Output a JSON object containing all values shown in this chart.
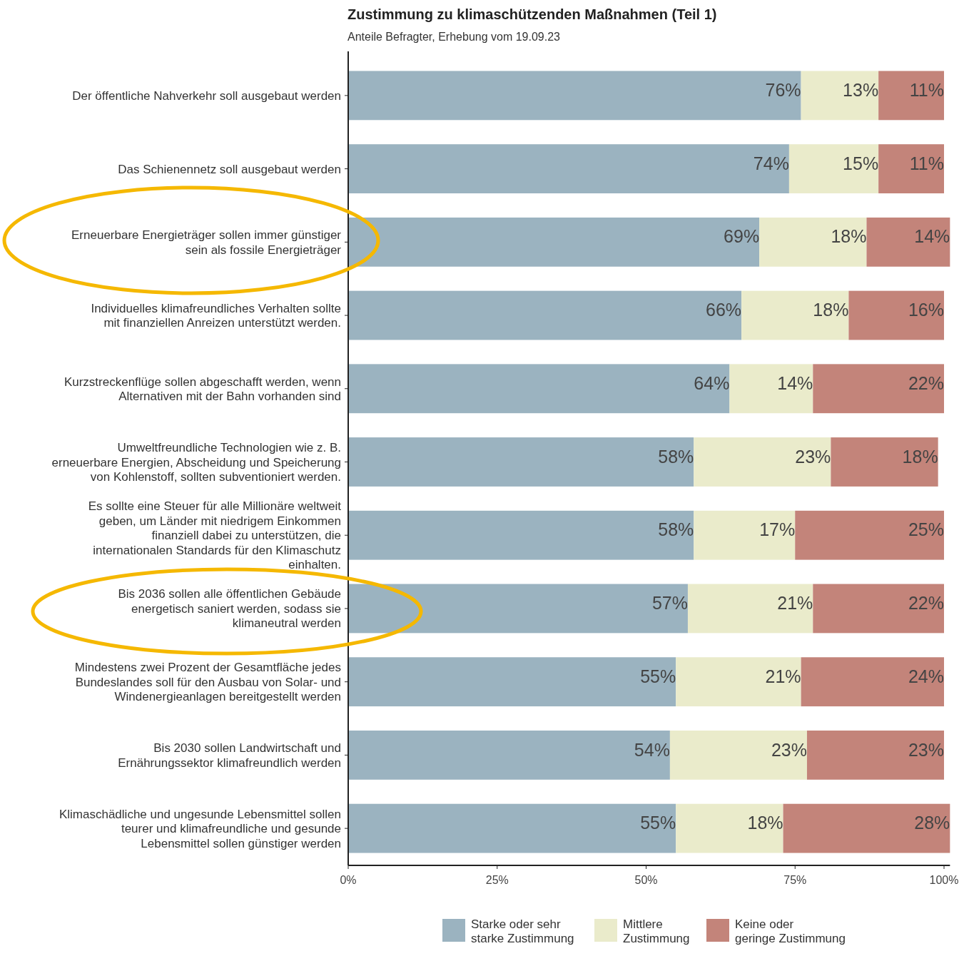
{
  "chart_data": {
    "type": "bar",
    "orientation": "horizontal",
    "stacked": true,
    "title": "Zustimmung zu klimaschützenden Maßnahmen (Teil 1)",
    "subtitle": "Anteile Befragter, Erhebung vom 19.09.23",
    "categories": [
      "Der öffentliche Nahverkehr soll ausgebaut werden",
      "Das Schienennetz soll ausgebaut werden",
      "Erneuerbare Energieträger sollen immer günstiger\nsein als fossile Energieträger",
      "Individuelles klimafreundliches Verhalten sollte\nmit finanziellen Anreizen unterstützt werden.",
      "Kurzstreckenflüge sollen abgeschafft werden, wenn\nAlternativen mit der Bahn vorhanden sind",
      "Umweltfreundliche Technologien wie z. B.\nerneuerbare Energien, Abscheidung und Speicherung\nvon Kohlenstoff, sollten subventioniert werden.",
      "Es sollte eine Steuer für alle Millionäre weltweit\ngeben, um Länder mit niedrigem Einkommen\nfinanziell dabei zu unterstützen, die\ninternationalen Standards für den Klimaschutz\neinhalten.",
      "Bis 2036 sollen alle öffentlichen Gebäude\nenergetisch saniert werden, sodass sie\nklimaneutral werden",
      "Mindestens zwei Prozent der Gesamtfläche jedes\nBundeslandes soll für den Ausbau von Solar- und\nWindenergieanlagen bereitgestellt werden",
      "Bis 2030 sollen Landwirtschaft und\nErnährungssektor klimafreundlich werden",
      "Klimaschädliche und ungesunde Lebensmittel sollen\nteurer und klimafreundliche und gesunde\nLebensmittel sollen günstiger werden"
    ],
    "series": [
      {
        "name": "Starke oder sehr\nstarke Zustimmung",
        "color": "#9bb3c0",
        "values": [
          76,
          74,
          69,
          66,
          64,
          58,
          58,
          57,
          55,
          54,
          55
        ]
      },
      {
        "name": "Mittlere\nZustimmung",
        "color": "#eaebcb",
        "values": [
          13,
          15,
          18,
          18,
          14,
          23,
          17,
          21,
          21,
          23,
          18
        ]
      },
      {
        "name": "Keine oder\ngeringe Zustimmung",
        "color": "#c3847a",
        "values": [
          11,
          11,
          14,
          16,
          22,
          18,
          25,
          22,
          24,
          23,
          28
        ]
      }
    ],
    "value_labels": [
      [
        "76%",
        "74%",
        "69%",
        "66%",
        "64%",
        "58%",
        "58%",
        "57%",
        "55%",
        "54%",
        "55%"
      ],
      [
        "13%",
        "15%",
        "18%",
        "18%",
        "14%",
        "23%",
        "17%",
        "21%",
        "21%",
        "23%",
        "18%"
      ],
      [
        "11%",
        "11%",
        "14%",
        "16%",
        "22%",
        "18%",
        "25%",
        "22%",
        "24%",
        "23%",
        "28%"
      ]
    ],
    "xlim": [
      0,
      101
    ],
    "xticks": [
      {
        "value": 0,
        "label": "0%"
      },
      {
        "value": 25,
        "label": "25%"
      },
      {
        "value": 50,
        "label": "50%"
      },
      {
        "value": 75,
        "label": "75%"
      },
      {
        "value": 100,
        "label": "100%"
      }
    ],
    "grid": false,
    "legend": "bottom"
  }
}
